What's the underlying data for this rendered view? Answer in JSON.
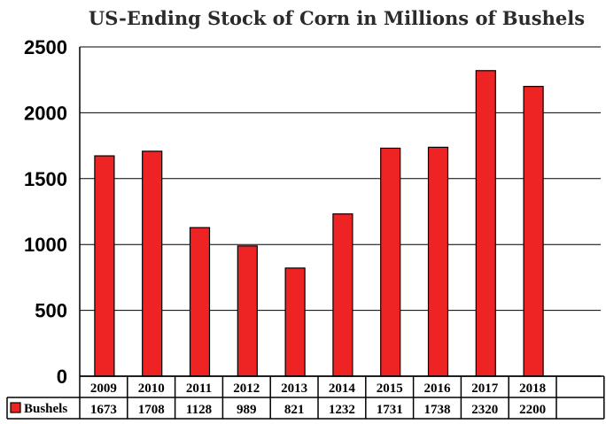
{
  "chart_data": {
    "type": "bar",
    "title": "US-Ending Stock of Corn in Millions of Bushels",
    "xlabel": "",
    "ylabel": "",
    "categories": [
      "2009",
      "2010",
      "2011",
      "2012",
      "2013",
      "2014",
      "2015",
      "2016",
      "2017",
      "2018"
    ],
    "series": [
      {
        "name": "Bushels",
        "values": [
          1673,
          1708,
          1128,
          989,
          821,
          1232,
          1731,
          1738,
          2320,
          2200
        ],
        "color": "#ee2424"
      }
    ],
    "ylim": [
      0,
      2500
    ],
    "yticks": [
      "0",
      "500",
      "1000",
      "1500",
      "2000",
      "2500"
    ],
    "grid": true,
    "legend": "data table row",
    "data_table": true
  }
}
